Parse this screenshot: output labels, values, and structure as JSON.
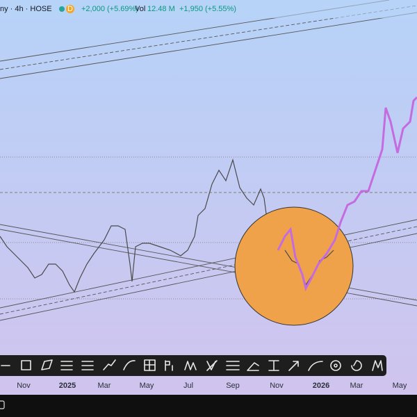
{
  "header": {
    "symbol": "ny · 4h · HOSE",
    "badge": "D",
    "change": "+2,000 (+5.69%)",
    "volume_label": "Vol",
    "volume": "12.48 M",
    "volume_change": "+1,950 (+5.55%)"
  },
  "time_axis": {
    "labels": [
      "Nov",
      "2025",
      "Mar",
      "May",
      "Jul",
      "Sep",
      "Nov",
      "2026",
      "Mar",
      "May"
    ]
  }
}
